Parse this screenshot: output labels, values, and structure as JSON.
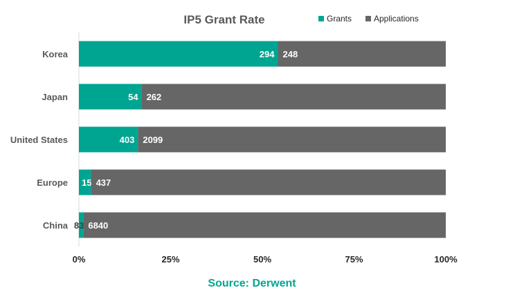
{
  "chart_data": {
    "type": "bar",
    "orientation": "horizontal",
    "stacking": "percent",
    "title": "IP5 Grant Rate",
    "categories": [
      "Korea",
      "Japan",
      "United States",
      "Europe",
      "China"
    ],
    "series": [
      {
        "name": "Grants",
        "values": [
          294,
          54,
          403,
          15,
          83
        ]
      },
      {
        "name": "Applications",
        "values": [
          248,
          262,
          2099,
          437,
          6840
        ]
      }
    ],
    "xlim": [
      0,
      100
    ],
    "xticks": [
      "0%",
      "25%",
      "50%",
      "75%",
      "100%"
    ],
    "legend_position": "top-right",
    "grid": false,
    "colors": {
      "Grants": "#00a591",
      "Applications": "#666666"
    },
    "source": "Source: Derwent"
  }
}
